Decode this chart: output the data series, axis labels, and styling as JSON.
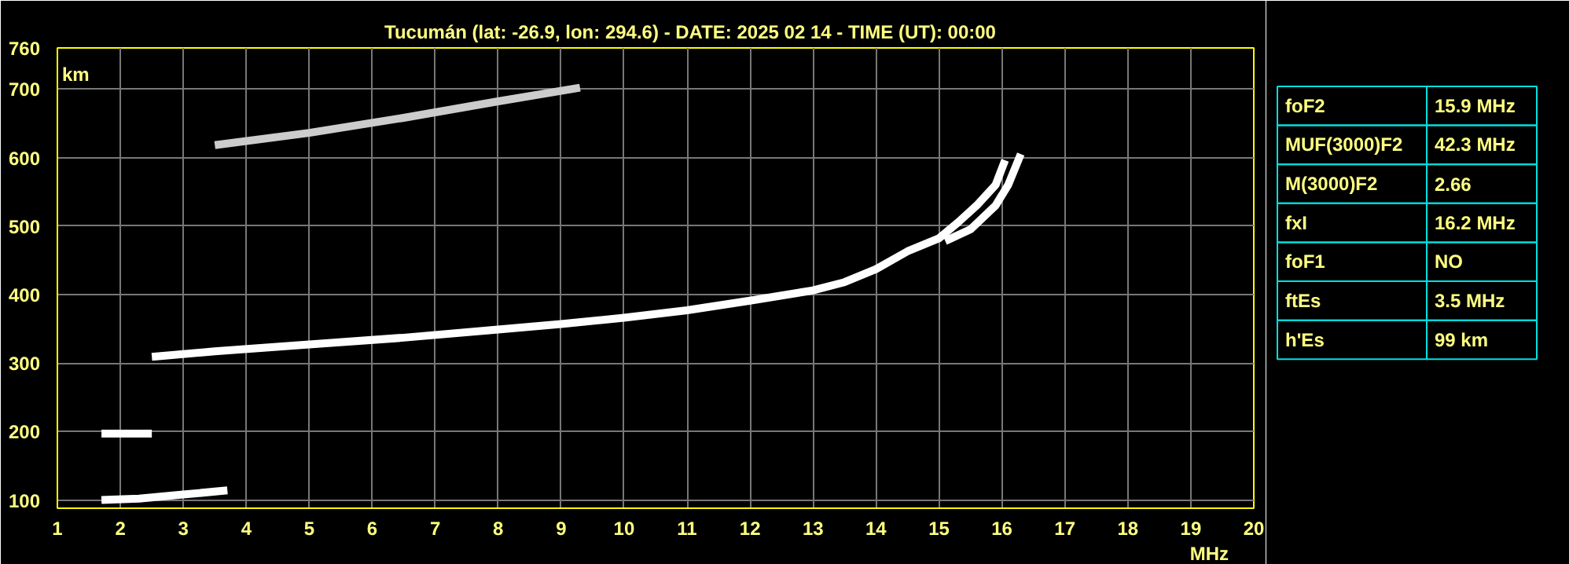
{
  "chart_data": [
    {
      "type": "line",
      "title": "Tucumán (lat: -26.9, lon: 294.6) - DATE: 2025 02 14 - TIME (UT): 00:00",
      "xlabel": "MHz",
      "ylabel": "km",
      "xlim": [
        1,
        20
      ],
      "ylim": [
        88,
        760
      ],
      "xticks": [
        1,
        2,
        3,
        4,
        5,
        6,
        7,
        8,
        9,
        10,
        11,
        12,
        13,
        14,
        15,
        16,
        17,
        18,
        19,
        20
      ],
      "yticks": [
        100,
        200,
        300,
        400,
        500,
        600,
        700,
        760
      ],
      "grid": true,
      "marker": "none",
      "line_style": "solid",
      "series": [
        {
          "color": "#ffffff",
          "x": [
            2.5,
            3.5,
            5,
            6.5,
            8,
            9,
            10,
            11,
            12,
            13,
            13.5,
            14,
            14.5,
            15,
            15.3,
            15.6,
            15.9,
            16.05
          ],
          "values": [
            309,
            317,
            327,
            337,
            349,
            357,
            366,
            377,
            391,
            406,
            418,
            437,
            463,
            482,
            505,
            530,
            560,
            596
          ]
        },
        {
          "color": "#ffffff",
          "x": [
            15.1,
            15.5,
            15.9,
            16.1,
            16.3
          ],
          "values": [
            478,
            495,
            530,
            560,
            605
          ]
        },
        {
          "color": "#cccccc",
          "x": [
            3.5,
            5,
            6.5,
            8,
            9.3
          ],
          "values": [
            618,
            636,
            658,
            682,
            702
          ]
        },
        {
          "color": "#ffffff",
          "x": [
            1.7,
            2.5
          ],
          "values": [
            197,
            197
          ]
        },
        {
          "color": "#ffffff",
          "x": [
            1.7,
            2.3,
            3,
            3.7
          ],
          "values": [
            100,
            102,
            108,
            114
          ]
        }
      ]
    },
    {
      "type": "other",
      "annotations": [
        "foF2",
        "15.9 MHz",
        "MUF(3000)F2",
        "42.3 MHz",
        "M(3000)F2",
        "2.66",
        "fxI",
        "16.2 MHz",
        "foF1",
        "NO",
        "ftEs",
        "3.5 MHz",
        "h'Es",
        "99 km"
      ]
    }
  ]
}
